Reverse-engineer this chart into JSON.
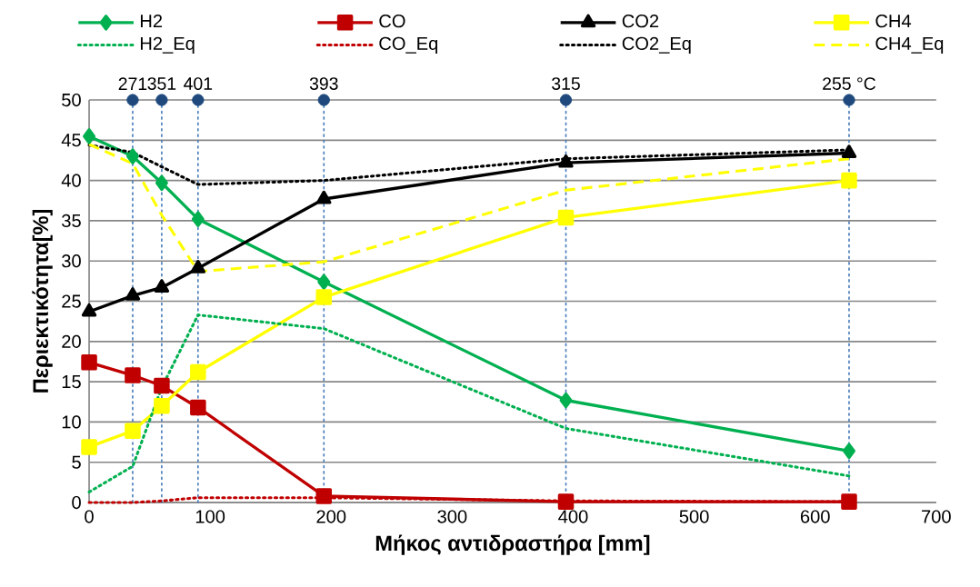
{
  "chart_data": {
    "type": "line",
    "xlabel": "Μήκος αντιδραστήρα [mm]",
    "ylabel": "Περιεκτικότητα[%]",
    "xlim": [
      0,
      700
    ],
    "xticks": [
      0,
      100,
      200,
      300,
      400,
      500,
      600,
      700
    ],
    "ylim": [
      0,
      50
    ],
    "yticks": [
      0,
      5,
      10,
      15,
      20,
      25,
      30,
      35,
      40,
      45,
      50
    ],
    "grid": "y",
    "legend": "top",
    "x": [
      0,
      36,
      60,
      90,
      194,
      394,
      628
    ],
    "series": [
      {
        "name": "H2",
        "color": "#00b050",
        "marker": "diamond",
        "line_style": "solid",
        "values": [
          45.5,
          43.0,
          39.7,
          35.2,
          27.4,
          12.7,
          6.4
        ]
      },
      {
        "name": "CO",
        "color": "#c00000",
        "marker": "square",
        "line_style": "solid",
        "values": [
          17.4,
          15.8,
          14.5,
          11.8,
          0.8,
          0.1,
          0.1
        ]
      },
      {
        "name": "CO2",
        "color": "#000000",
        "marker": "triangle",
        "line_style": "solid",
        "values": [
          23.7,
          25.7,
          26.7,
          29.1,
          37.7,
          42.2,
          43.4
        ]
      },
      {
        "name": "CH4",
        "color": "#ffff00",
        "marker": "square",
        "line_style": "solid",
        "values": [
          6.9,
          8.9,
          12.0,
          16.2,
          25.5,
          35.4,
          40.0
        ]
      },
      {
        "name": "H2_Eq",
        "color": "#00b050",
        "marker": "none",
        "line_style": "dotted",
        "values": [
          1.3,
          4.5,
          14.3,
          23.3,
          21.6,
          9.2,
          3.3
        ]
      },
      {
        "name": "CO_Eq",
        "color": "#c00000",
        "marker": "none",
        "line_style": "dotted",
        "values": [
          0.0,
          0.0,
          0.2,
          0.6,
          0.6,
          0.2,
          0.1
        ]
      },
      {
        "name": "CO2_Eq",
        "color": "#000000",
        "marker": "none",
        "line_style": "dotted",
        "values": [
          44.4,
          43.5,
          41.7,
          39.5,
          40.0,
          42.7,
          43.8
        ]
      },
      {
        "name": "CH4_Eq",
        "color": "#ffff00",
        "marker": "none",
        "line_style": "dashed",
        "values": [
          44.5,
          42.1,
          35.7,
          28.7,
          29.9,
          38.8,
          42.7
        ]
      },
      {
        "type": "scatter",
        "color": "#1f497d",
        "marker": "circle",
        "x": [
          36,
          60,
          90,
          194,
          394,
          628
        ],
        "values": [
          50,
          50,
          50,
          50,
          50,
          50
        ]
      }
    ],
    "annotations": [
      {
        "text": "271",
        "x": 36,
        "y": 50
      },
      {
        "text": "351",
        "x": 60,
        "y": 50
      },
      {
        "text": "401",
        "x": 90,
        "y": 50
      },
      {
        "text": "393",
        "x": 194,
        "y": 50
      },
      {
        "text": "315",
        "x": 394,
        "y": 50
      },
      {
        "text": "255 °C",
        "x": 628,
        "y": 50
      }
    ],
    "ref_lines": [
      {
        "axis": "x",
        "value": 36,
        "color": "#4a7ebb",
        "line_style": "dotted"
      },
      {
        "axis": "x",
        "value": 60,
        "color": "#4a7ebb",
        "line_style": "dotted"
      },
      {
        "axis": "x",
        "value": 90,
        "color": "#4a7ebb",
        "line_style": "dotted"
      },
      {
        "axis": "x",
        "value": 194,
        "color": "#4a7ebb",
        "line_style": "dotted"
      },
      {
        "axis": "x",
        "value": 394,
        "color": "#4a7ebb",
        "line_style": "dotted"
      },
      {
        "axis": "x",
        "value": 628,
        "color": "#4a7ebb",
        "line_style": "dotted"
      }
    ]
  }
}
